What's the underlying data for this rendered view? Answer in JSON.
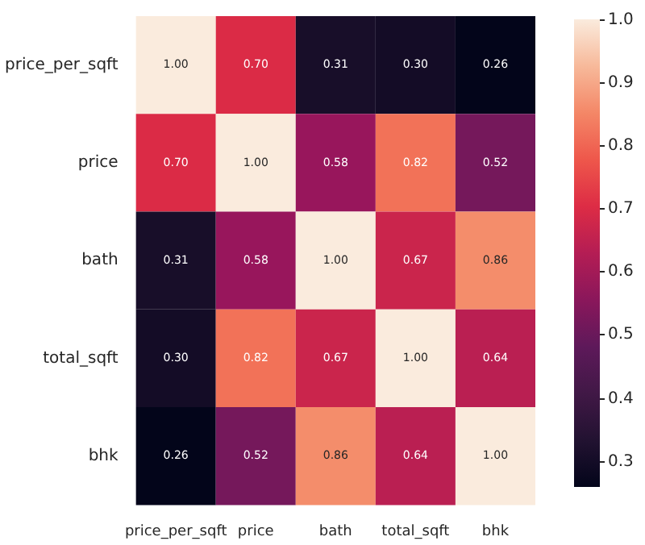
{
  "chart_data": {
    "type": "heatmap",
    "categories": [
      "price_per_sqft",
      "price",
      "bath",
      "total_sqft",
      "bhk"
    ],
    "y_categories": [
      "price_per_sqft",
      "price",
      "bath",
      "total_sqft",
      "bhk"
    ],
    "cells": [
      [
        1.0,
        0.7,
        0.31,
        0.3,
        0.26
      ],
      [
        0.7,
        1.0,
        0.58,
        0.82,
        0.52
      ],
      [
        0.31,
        0.58,
        1.0,
        0.67,
        0.86
      ],
      [
        0.3,
        0.82,
        0.67,
        1.0,
        0.64
      ],
      [
        0.26,
        0.52,
        0.86,
        0.64,
        1.0
      ]
    ],
    "cell_labels": [
      [
        "1.00",
        "0.70",
        "0.31",
        "0.30",
        "0.26"
      ],
      [
        "0.70",
        "1.00",
        "0.58",
        "0.82",
        "0.52"
      ],
      [
        "0.31",
        "0.58",
        "1.00",
        "0.67",
        "0.86"
      ],
      [
        "0.30",
        "0.82",
        "0.67",
        "1.00",
        "0.64"
      ],
      [
        "0.26",
        "0.52",
        "0.86",
        "0.64",
        "1.00"
      ]
    ],
    "clim": [
      0.26,
      1.0
    ],
    "cticks": [
      0.3,
      0.4,
      0.5,
      0.6,
      0.7,
      0.8,
      0.9,
      {
        "value": 1,
        "label": "1.0"
      }
    ]
  }
}
